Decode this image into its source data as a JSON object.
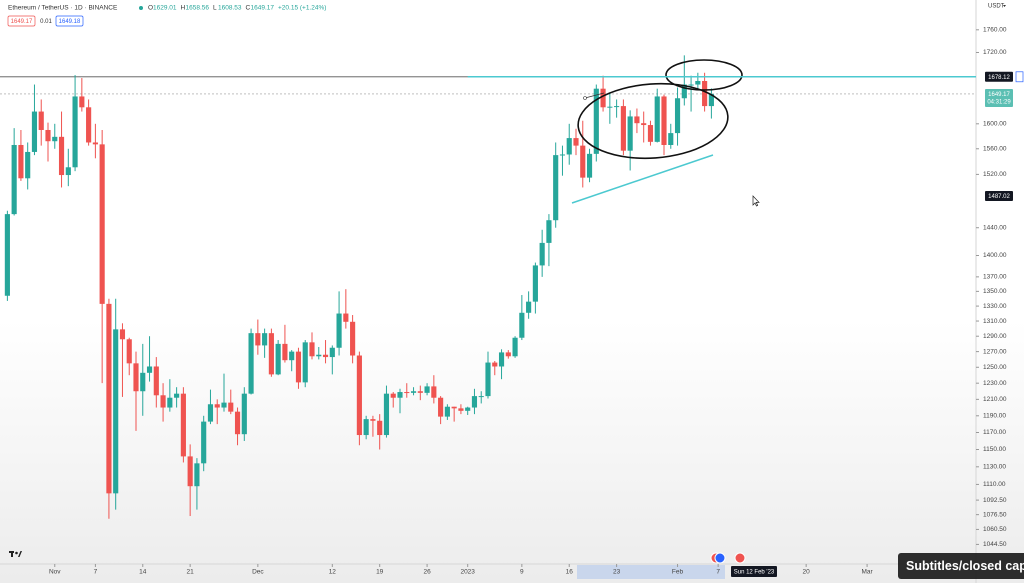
{
  "header": {
    "title": "Ethereum / TetherUS · 1D · BINANCE",
    "ohlc": [
      {
        "label": "O",
        "value": "1629.01"
      },
      {
        "label": "H",
        "value": "1658.56"
      },
      {
        "label": "L",
        "value": "1608.53"
      },
      {
        "label": "C",
        "value": "1649.17"
      }
    ],
    "change": "+20.15 (+1.24%)",
    "sell": "1649.17",
    "spread": "0.01",
    "buy": "1649.18"
  },
  "currency": "USDT",
  "overlay_caption": "Subtitles/closed capt",
  "chart_data": {
    "type": "candlestick",
    "log_scale": true,
    "up_color": "#26a69a",
    "down_color": "#ef5350",
    "categories": [
      null,
      null,
      null,
      null,
      null,
      null,
      null,
      "Nov",
      null,
      null,
      null,
      null,
      null,
      "7",
      null,
      null,
      null,
      null,
      null,
      null,
      "14",
      null,
      null,
      null,
      null,
      null,
      null,
      "21",
      null,
      null,
      null,
      null,
      null,
      null,
      null,
      null,
      null,
      "Dec",
      null,
      null,
      null,
      null,
      null,
      null,
      null,
      null,
      null,
      null,
      "12",
      null,
      null,
      null,
      null,
      null,
      null,
      "19",
      null,
      null,
      null,
      null,
      null,
      null,
      "26",
      null,
      null,
      null,
      null,
      null,
      "2023",
      null,
      null,
      null,
      null,
      null,
      null,
      null,
      "9",
      null,
      null,
      null,
      null,
      null,
      null,
      "16",
      null,
      null,
      null,
      null,
      null,
      null,
      "23",
      null,
      null,
      null,
      null,
      null,
      null,
      null,
      null,
      "Feb",
      null,
      null,
      null,
      null,
      null,
      "7",
      null,
      null,
      null,
      null,
      null,
      null,
      null,
      null,
      null,
      null,
      null,
      null,
      "20",
      null,
      null,
      null,
      null,
      null,
      null,
      null,
      null,
      "Mar",
      null,
      null,
      null,
      null,
      null,
      null,
      null,
      null,
      null,
      null,
      null,
      null,
      null,
      null,
      null
    ],
    "open": [
      1344,
      1460,
      1566,
      1514,
      1555,
      1620,
      1590,
      1572,
      1579,
      1519,
      1531,
      1645,
      1627,
      1570,
      1567,
      1333,
      1100,
      1299,
      1286,
      1255,
      1220,
      1243,
      1251,
      1215,
      1200,
      1212,
      1217,
      1142,
      1108,
      1134,
      1183,
      1204,
      1200,
      1206,
      1195,
      1168,
      1217,
      1294,
      1278,
      1294,
      1241,
      1280,
      1259,
      1270,
      1231,
      1282,
      1264,
      1266,
      1263,
      1275,
      1320,
      1309,
      1265,
      1167,
      1186,
      1184,
      1167,
      1217,
      1212,
      1219,
      1218,
      1220,
      1218,
      1226,
      1212,
      1189,
      1201,
      1199,
      1196,
      1200,
      1214,
      1214,
      1256,
      1251,
      1269,
      1264,
      1288,
      1321,
      1336,
      1386,
      1418,
      1451,
      1550,
      1551,
      1577,
      1565,
      1515,
      1552,
      1658,
      1627,
      1628,
      1629,
      1557,
      1612,
      1601,
      1598,
      1571,
      1645,
      1566,
      1585,
      1642,
      1665,
      1665,
      1671,
      1629.01,
      null,
      null,
      null,
      null,
      null,
      null,
      null,
      null,
      null,
      null,
      null,
      null,
      null,
      null,
      null,
      null,
      null,
      null,
      null,
      null,
      null,
      null,
      null,
      null,
      null,
      null,
      null,
      null,
      null,
      null,
      null,
      null,
      null,
      null,
      null,
      null,
      null,
      null
    ],
    "high": [
      1465,
      1593,
      1590,
      1570,
      1665,
      1640,
      1602,
      1600,
      1620,
      1560,
      1681,
      1676,
      1640,
      1600,
      1590,
      1340,
      1340,
      1307,
      1288,
      1270,
      1280,
      1290,
      1263,
      1230,
      1235,
      1225,
      1225,
      1156,
      1140,
      1190,
      1222,
      1210,
      1242,
      1222,
      1200,
      1225,
      1300,
      1312,
      1300,
      1300,
      1285,
      1305,
      1272,
      1275,
      1285,
      1295,
      1276,
      1285,
      1278,
      1350,
      1353,
      1318,
      1270,
      1190,
      1190,
      1192,
      1227,
      1219,
      1223,
      1230,
      1225,
      1227,
      1230,
      1240,
      1214,
      1204,
      1201,
      1204,
      1201,
      1223,
      1220,
      1270,
      1258,
      1273,
      1272,
      1290,
      1345,
      1350,
      1390,
      1437,
      1460,
      1570,
      1565,
      1600,
      1592,
      1605,
      1560,
      1665,
      1680,
      1650,
      1640,
      1640,
      1622,
      1625,
      1620,
      1605,
      1658,
      1648,
      1600,
      1660,
      1715,
      1680,
      1685,
      1685,
      1658.56,
      null,
      null,
      null,
      null,
      null,
      null,
      null,
      null,
      null,
      null,
      null,
      null,
      null,
      null,
      null,
      null,
      null,
      null,
      null,
      null,
      null,
      null,
      null,
      null,
      null,
      null,
      null,
      null,
      null,
      null,
      null,
      null,
      null,
      null,
      null,
      null,
      null,
      null
    ],
    "low": [
      1337,
      1458,
      1510,
      1497,
      1550,
      1565,
      1540,
      1560,
      1500,
      1502,
      1525,
      1620,
      1565,
      1545,
      1230,
      1072,
      1082,
      1213,
      1240,
      1172,
      1190,
      1232,
      1200,
      1183,
      1195,
      1200,
      1135,
      1075,
      1082,
      1125,
      1180,
      1180,
      1195,
      1192,
      1155,
      1160,
      1216,
      1266,
      1262,
      1238,
      1240,
      1256,
      1245,
      1223,
      1225,
      1260,
      1260,
      1255,
      1241,
      1265,
      1300,
      1255,
      1155,
      1162,
      1165,
      1150,
      1164,
      1200,
      1193,
      1212,
      1215,
      1209,
      1215,
      1205,
      1180,
      1185,
      1183,
      1192,
      1191,
      1192,
      1205,
      1211,
      1240,
      1235,
      1261,
      1262,
      1285,
      1313,
      1320,
      1370,
      1385,
      1440,
      1518,
      1535,
      1550,
      1500,
      1508,
      1540,
      1620,
      1600,
      1610,
      1550,
      1526,
      1585,
      1570,
      1565,
      1570,
      1550,
      1560,
      1565,
      1630,
      1620,
      1655,
      1620,
      1608.53,
      null,
      null,
      null,
      null,
      null,
      null,
      null,
      null,
      null,
      null,
      null,
      null,
      null,
      null,
      null,
      null,
      null,
      null,
      null,
      null,
      null,
      null,
      null,
      null,
      null,
      null,
      null,
      null,
      null,
      null,
      null,
      null,
      null,
      null,
      null,
      null,
      null,
      null
    ],
    "close": [
      1460,
      1566,
      1514,
      1555,
      1620,
      1590,
      1572,
      1579,
      1519,
      1531,
      1645,
      1627,
      1570,
      1567,
      1333,
      1100,
      1299,
      1286,
      1255,
      1220,
      1243,
      1251,
      1215,
      1200,
      1212,
      1217,
      1142,
      1108,
      1134,
      1183,
      1204,
      1200,
      1206,
      1195,
      1168,
      1217,
      1294,
      1278,
      1294,
      1241,
      1280,
      1259,
      1270,
      1231,
      1282,
      1264,
      1266,
      1263,
      1275,
      1320,
      1309,
      1265,
      1167,
      1186,
      1184,
      1167,
      1217,
      1212,
      1219,
      1218,
      1220,
      1218,
      1226,
      1212,
      1189,
      1201,
      1199,
      1196,
      1200,
      1214,
      1214,
      1256,
      1251,
      1269,
      1264,
      1288,
      1321,
      1336,
      1386,
      1418,
      1451,
      1550,
      1551,
      1577,
      1565,
      1515,
      1552,
      1658,
      1627,
      1628,
      1629,
      1557,
      1612,
      1601,
      1598,
      1571,
      1645,
      1566,
      1585,
      1642,
      1665,
      1665,
      1671,
      1629.01,
      1649.17,
      null,
      null,
      null,
      null,
      null,
      null,
      null,
      null,
      null,
      null,
      null,
      null,
      null,
      null,
      null,
      null,
      null,
      null,
      null,
      null,
      null,
      null,
      null,
      null,
      null,
      null,
      null,
      null,
      null,
      null,
      null,
      null,
      null,
      null,
      null,
      null,
      null,
      null
    ],
    "ylim": [
      1025,
      1814
    ],
    "yticks": [
      {
        "value": 1760,
        "label": "1760.00"
      },
      {
        "value": 1720,
        "label": "1720.00"
      },
      {
        "value": 1600,
        "label": "1600.00"
      },
      {
        "value": 1560,
        "label": "1560.00"
      },
      {
        "value": 1520,
        "label": "1520.00"
      },
      {
        "value": 1440,
        "label": "1440.00"
      },
      {
        "value": 1400,
        "label": "1400.00"
      },
      {
        "value": 1370,
        "label": "1370.00"
      },
      {
        "value": 1350,
        "label": "1350.00"
      },
      {
        "value": 1330,
        "label": "1330.00"
      },
      {
        "value": 1310,
        "label": "1310.00"
      },
      {
        "value": 1290,
        "label": "1290.00"
      },
      {
        "value": 1270,
        "label": "1270.00"
      },
      {
        "value": 1250,
        "label": "1250.00"
      },
      {
        "value": 1230,
        "label": "1230.00"
      },
      {
        "value": 1210,
        "label": "1210.00"
      },
      {
        "value": 1190,
        "label": "1190.00"
      },
      {
        "value": 1170,
        "label": "1170.00"
      },
      {
        "value": 1150,
        "label": "1150.00"
      },
      {
        "value": 1130,
        "label": "1130.00"
      },
      {
        "value": 1110,
        "label": "1110.00"
      },
      {
        "value": 1092.5,
        "label": "1092.50"
      },
      {
        "value": 1076.5,
        "label": "1076.50"
      },
      {
        "value": 1060.5,
        "label": "1060.50"
      },
      {
        "value": 1044.5,
        "label": "1044.50"
      }
    ],
    "horizontal_line": {
      "value": 1678.12,
      "label": "1678.12"
    },
    "last_price_label": "1649.17",
    "countdown": "04:31:29",
    "crosshair": {
      "date": "Sun 12 Feb '23",
      "price": 1487.02,
      "price_label": "1487.02"
    }
  }
}
